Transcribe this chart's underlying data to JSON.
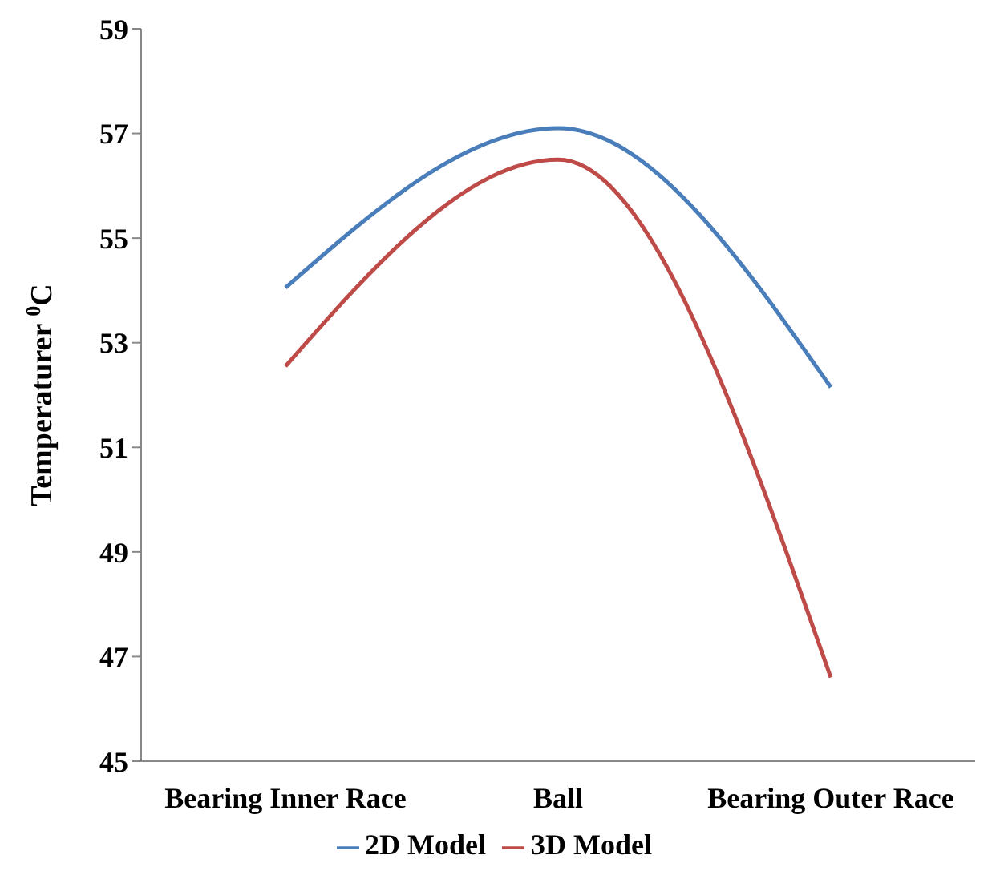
{
  "chart_data": {
    "type": "line",
    "ylabel": "Temperaturer $^{0}$C",
    "categories": [
      "Bearing Inner Race",
      "Ball",
      "Bearing Outer Race"
    ],
    "series": [
      {
        "name": "2D Model",
        "color": "#4a7ebb",
        "values": [
          54.05,
          57.1,
          52.15
        ]
      },
      {
        "name": "3D Model",
        "color": "#be4b48",
        "values": [
          52.55,
          56.5,
          46.6
        ]
      }
    ],
    "ylim": [
      45,
      59
    ],
    "yticks": [
      45,
      47,
      49,
      51,
      53,
      55,
      57,
      59
    ],
    "grid": false,
    "legend": "bottom",
    "marker": "none",
    "line_style": "solid"
  }
}
